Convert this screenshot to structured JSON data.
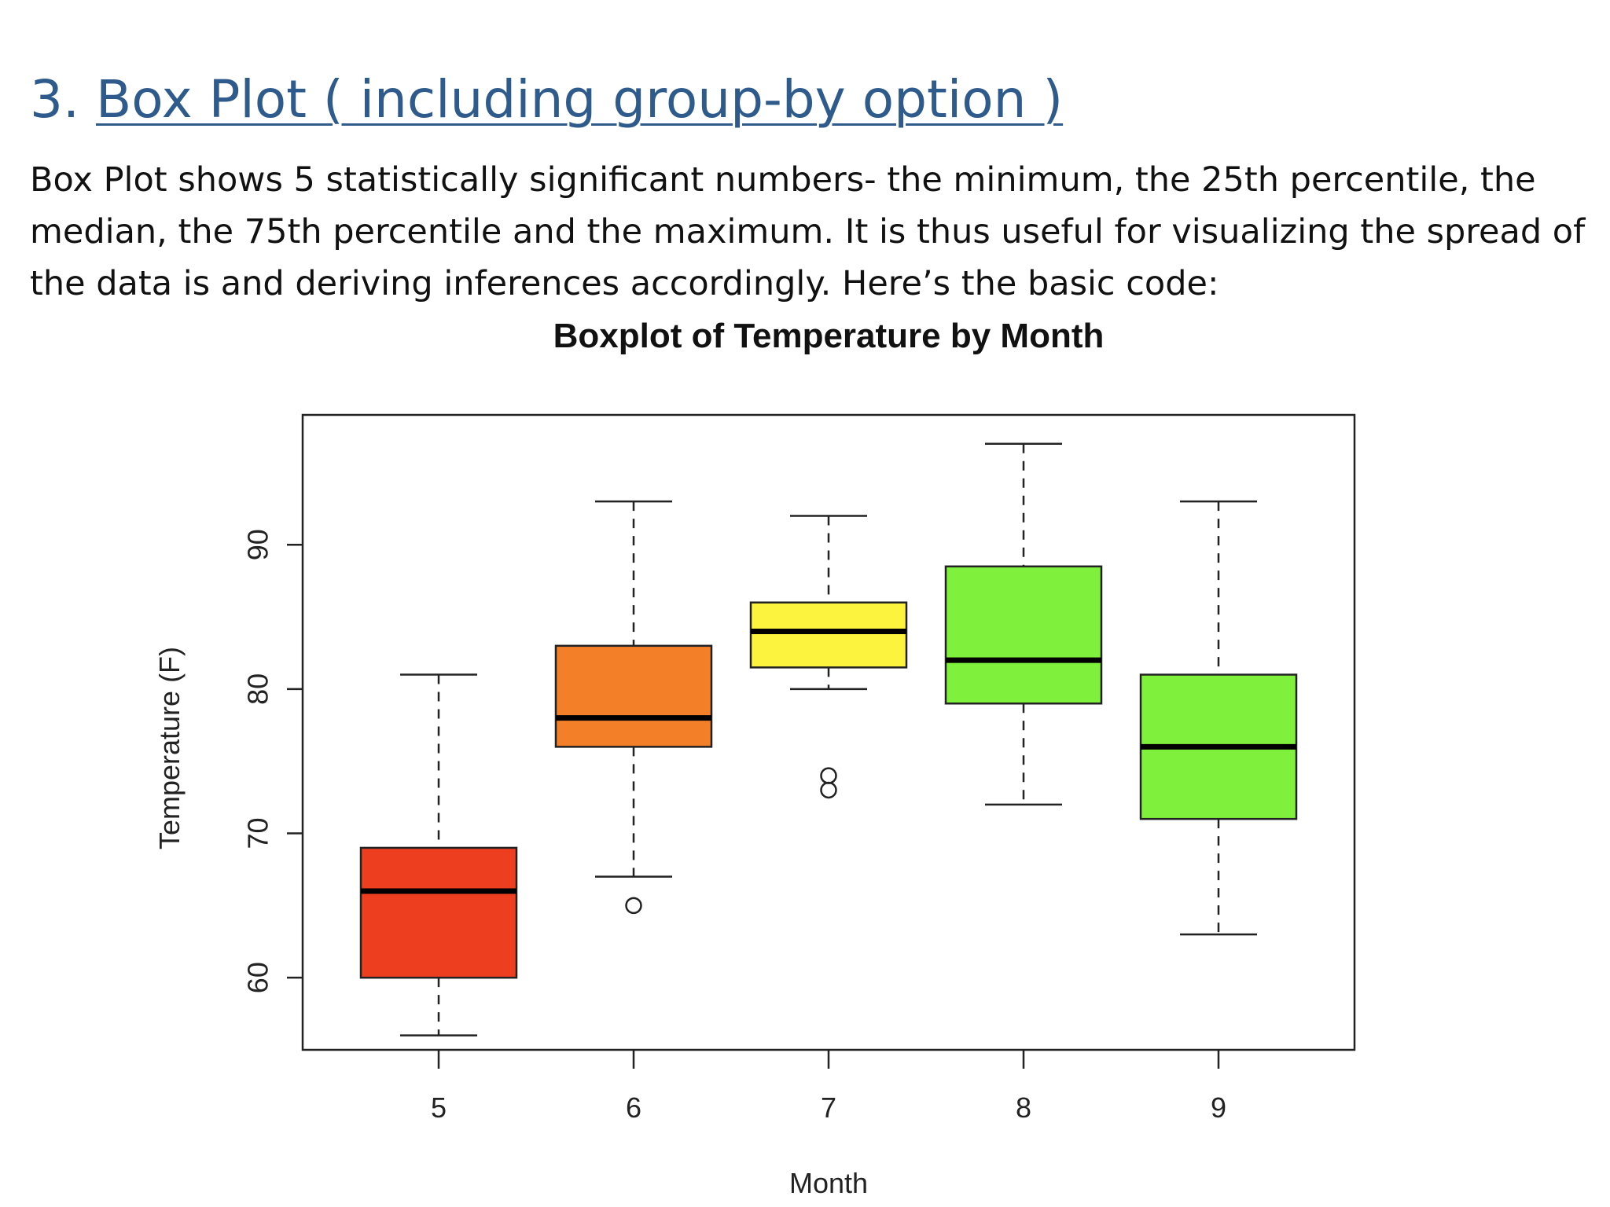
{
  "slide": {
    "number_prefix": "3. ",
    "title_link": "Box Plot ( including group-by option )",
    "body": "Box Plot  shows 5 statistically significant numbers- the minimum, the 25th percentile, the median, the 75th percentile and the maximum. It is thus useful for visualizing the spread of the data is and deriving inferences accordingly. Here’s the basic code:"
  },
  "chart_data": {
    "type": "box",
    "title": "Boxplot of Temperature by Month",
    "xlabel": "Month",
    "ylabel": "Temperature (F)",
    "ylim": [
      55,
      99
    ],
    "yticks": [
      60,
      70,
      80,
      90
    ],
    "categories": [
      "5",
      "6",
      "7",
      "8",
      "9"
    ],
    "series": [
      {
        "category": "5",
        "min": 56,
        "q1": 60,
        "median": 66,
        "q3": 69,
        "max": 81,
        "outliers": [],
        "color": "#ee3e20"
      },
      {
        "category": "6",
        "min": 67,
        "q1": 76,
        "median": 78,
        "q3": 83,
        "max": 93,
        "outliers": [
          65
        ],
        "color": "#f38029"
      },
      {
        "category": "7",
        "min": 80,
        "q1": 81.5,
        "median": 84,
        "q3": 86,
        "max": 92,
        "outliers": [
          73,
          74
        ],
        "color": "#fbf33d"
      },
      {
        "category": "8",
        "min": 72,
        "q1": 79,
        "median": 82,
        "q3": 88.5,
        "max": 97,
        "outliers": [],
        "color": "#7ff03b"
      },
      {
        "category": "9",
        "min": 63,
        "q1": 71,
        "median": 76,
        "q3": 81,
        "max": 93,
        "outliers": [],
        "color": "#7ff03b"
      }
    ],
    "grid": false,
    "legend": "none"
  }
}
